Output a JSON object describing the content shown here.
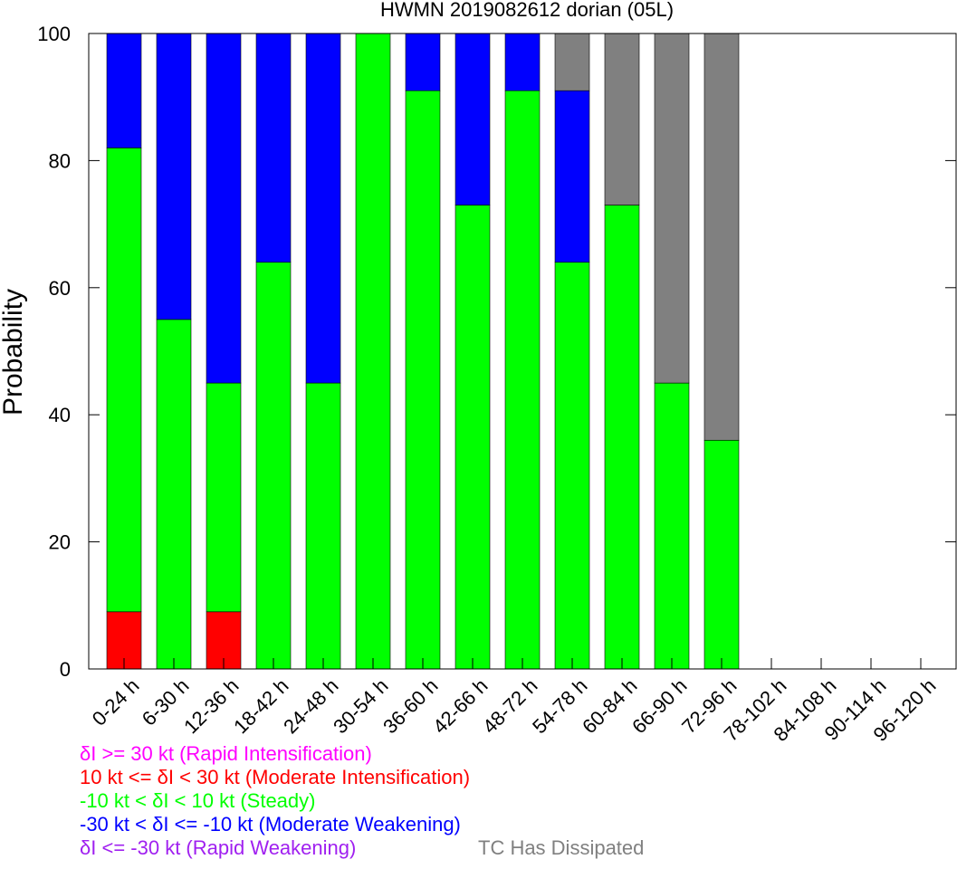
{
  "chart_data": {
    "type": "bar",
    "stacked": true,
    "title": "HWMN 2019082612 dorian (05L)",
    "xlabel": "",
    "ylabel": "Probability",
    "ylim": [
      0,
      100
    ],
    "yticks": [
      "0",
      "20",
      "40",
      "60",
      "80",
      "100"
    ],
    "categories": [
      "0-24 h",
      "6-30 h",
      "12-36 h",
      "18-42 h",
      "24-48 h",
      "30-54 h",
      "36-60 h",
      "42-66 h",
      "48-72 h",
      "54-78 h",
      "60-84 h",
      "66-90 h",
      "72-96 h",
      "78-102 h",
      "84-108 h",
      "90-114 h",
      "96-120 h"
    ],
    "series": [
      {
        "name": "δI >= 30 kt (Rapid Intensification)",
        "color": "#ff00ff",
        "values": [
          0,
          0,
          0,
          0,
          0,
          0,
          0,
          0,
          0,
          0,
          0,
          0,
          0,
          0,
          0,
          0,
          0
        ]
      },
      {
        "name": "10 kt <= δI < 30 kt (Moderate Intensification)",
        "color": "#ff0000",
        "values": [
          9,
          0,
          9,
          0,
          0,
          0,
          0,
          0,
          0,
          0,
          0,
          0,
          0,
          0,
          0,
          0,
          0
        ]
      },
      {
        "name": "-10 kt < δI < 10 kt (Steady)",
        "color": "#00ff00",
        "values": [
          73,
          55,
          36,
          64,
          45,
          100,
          91,
          73,
          91,
          64,
          73,
          45,
          36,
          0,
          0,
          0,
          0
        ]
      },
      {
        "name": "-30 kt < δI <= -10 kt (Moderate Weakening)",
        "color": "#0000ff",
        "values": [
          18,
          45,
          55,
          36,
          55,
          0,
          9,
          27,
          9,
          27,
          0,
          0,
          0,
          0,
          0,
          0,
          0
        ]
      },
      {
        "name": "δI <= -30 kt (Rapid Weakening)",
        "color": "#a020f0",
        "values": [
          0,
          0,
          0,
          0,
          0,
          0,
          0,
          0,
          0,
          0,
          0,
          0,
          0,
          0,
          0,
          0,
          0
        ]
      },
      {
        "name": "TC Has Dissipated",
        "color": "#808080",
        "values": [
          0,
          0,
          0,
          0,
          0,
          0,
          0,
          0,
          0,
          9,
          27,
          55,
          64,
          0,
          0,
          0,
          0
        ]
      }
    ],
    "grid": false,
    "legend_position": "bottom-left"
  }
}
